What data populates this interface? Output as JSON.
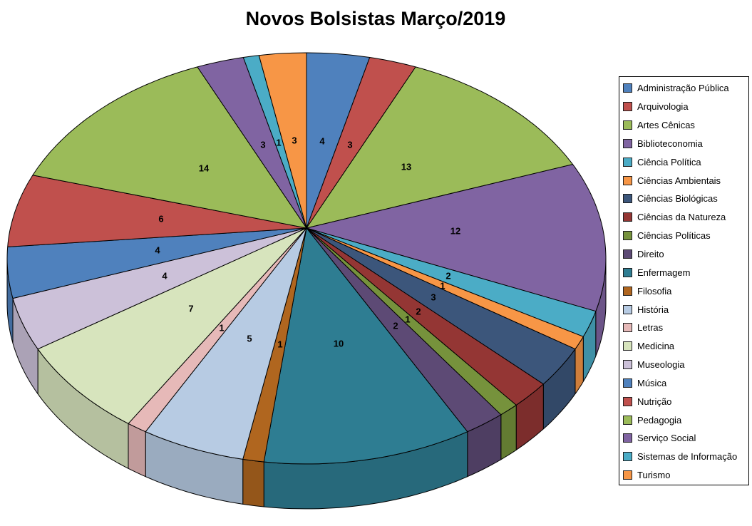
{
  "title": "Novos Bolsistas Março/2019",
  "chart_data": {
    "type": "pie",
    "style": "3d-perspective",
    "title": "Novos Bolsistas Março/2019",
    "legend_position": "right",
    "data_labels": "values",
    "total": 102,
    "background": "#ffffff",
    "categories": [
      "Administração Pública",
      "Arquivologia",
      "Artes Cênicas",
      "Biblioteconomia",
      "Ciência Política",
      "Ciências Ambientais",
      "Ciências Biológicas",
      "Ciências da Natureza",
      "Ciências Políticas",
      "Direito",
      "Enfermagem",
      "Filosofia",
      "História",
      "Letras",
      "Medicina",
      "Museologia",
      "Música",
      "Nutrição",
      "Pedagogia",
      "Serviço Social",
      "Sistemas de Informação",
      "Turismo"
    ],
    "values": [
      4,
      3,
      13,
      12,
      2,
      1,
      3,
      2,
      1,
      2,
      10,
      1,
      5,
      1,
      7,
      4,
      4,
      6,
      14,
      3,
      1,
      3
    ],
    "colors": [
      "#4F81BD",
      "#C0504D",
      "#9BBB59",
      "#8064A2",
      "#4BACC6",
      "#F79646",
      "#3C567B",
      "#943634",
      "#76923C",
      "#5D4A75",
      "#2E7D92",
      "#B0661F",
      "#B7CBE3",
      "#E6B9B8",
      "#D7E4BD",
      "#CCC1D9",
      "#4F81BD",
      "#C0504D",
      "#9BBB59",
      "#8064A2",
      "#4BACC6",
      "#F79646"
    ]
  }
}
